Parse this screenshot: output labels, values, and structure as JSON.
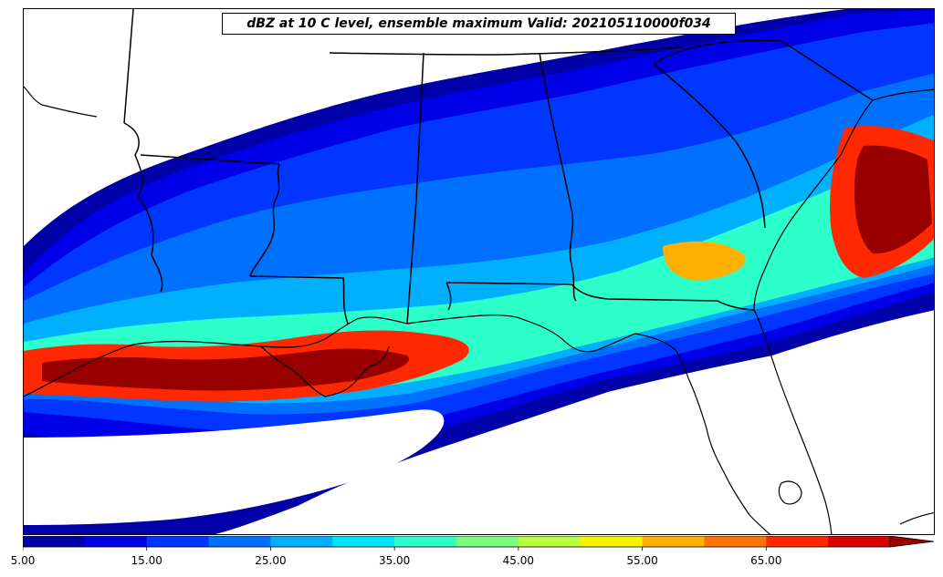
{
  "map": {
    "title": "dBZ at 10 C level, ensemble maximum Valid: 202105110000f034",
    "field": "dBZ at 10 C level",
    "region": "Southeastern United States",
    "basemap": "state and coastal boundaries",
    "colors_matter": {
      "boundaries": "#000000",
      "background": "#ffffff"
    }
  },
  "colorbar": {
    "levels": [
      5,
      10,
      15,
      20,
      25,
      30,
      35,
      40,
      45,
      50,
      55,
      60,
      65,
      70,
      75
    ],
    "colors": [
      "#0000a8",
      "#0000e8",
      "#0036ff",
      "#0070ff",
      "#00b0ff",
      "#00e4f8",
      "#2cffca",
      "#78ff7e",
      "#b8ff3e",
      "#f4f400",
      "#ffb000",
      "#ff7400",
      "#ff2800",
      "#d80000",
      "#980000"
    ],
    "extend": "max",
    "ticks": [
      "5.00",
      "15.00",
      "25.00",
      "35.00",
      "45.00",
      "55.00",
      "65.00"
    ]
  }
}
